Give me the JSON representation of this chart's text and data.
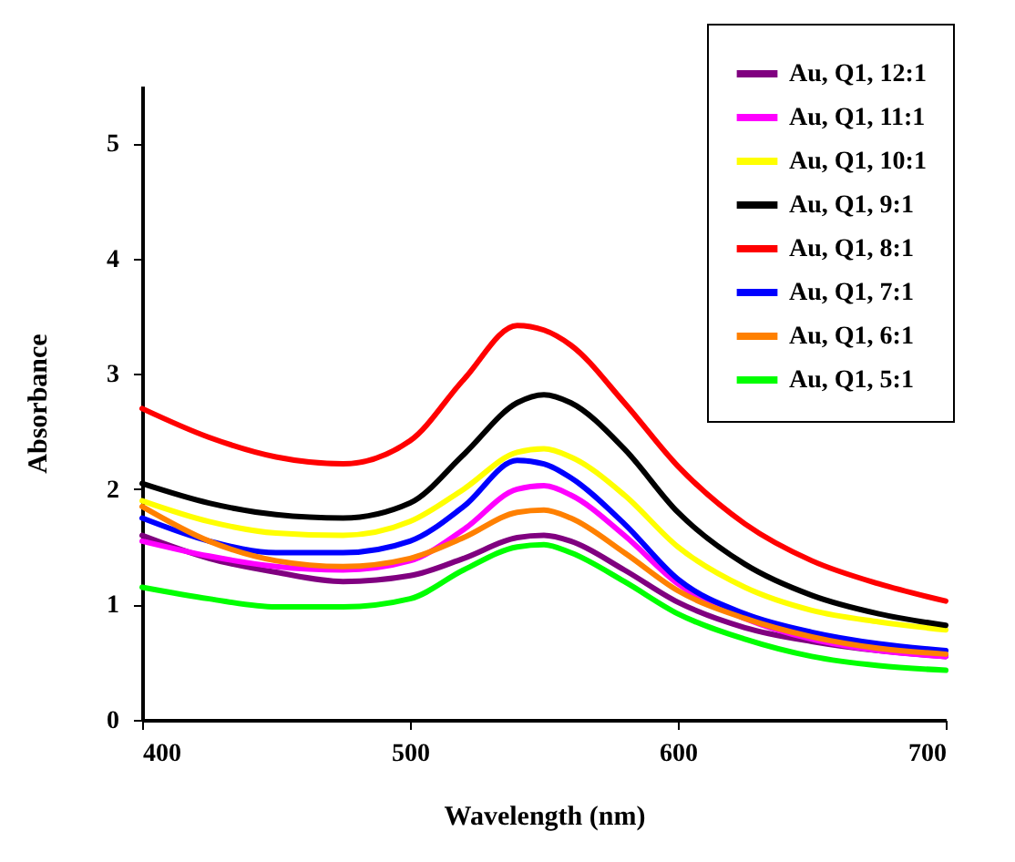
{
  "chart_data": {
    "type": "line",
    "xlabel": "Wavelength (nm)",
    "ylabel": "Absorbance",
    "x": [
      400,
      425,
      450,
      475,
      500,
      520,
      540,
      550,
      560,
      580,
      600,
      625,
      650,
      675,
      700
    ],
    "xlim": [
      400,
      700
    ],
    "xticks": [
      400,
      500,
      600,
      700
    ],
    "ylim": [
      0,
      5.5
    ],
    "yticks": [
      0,
      1,
      2,
      3,
      4,
      5
    ],
    "grid": false,
    "legend": "top right",
    "marker": "none",
    "line_style": "solid",
    "series": [
      {
        "name": "Au, Q1, 12:1",
        "color": "#800080",
        "values": [
          1.6,
          1.4,
          1.28,
          1.2,
          1.25,
          1.4,
          1.58,
          1.6,
          1.55,
          1.3,
          1.02,
          0.8,
          0.68,
          0.6,
          0.55
        ]
      },
      {
        "name": "Au, Q1, 11:1",
        "color": "#ff00ff",
        "values": [
          1.55,
          1.42,
          1.33,
          1.3,
          1.38,
          1.65,
          2.0,
          2.03,
          1.95,
          1.6,
          1.18,
          0.88,
          0.7,
          0.6,
          0.55
        ]
      },
      {
        "name": "Au, Q1, 10:1",
        "color": "#ffff00",
        "values": [
          1.9,
          1.72,
          1.62,
          1.6,
          1.72,
          2.0,
          2.32,
          2.35,
          2.28,
          1.95,
          1.5,
          1.15,
          0.95,
          0.85,
          0.78
        ]
      },
      {
        "name": "Au, Q1, 9:1",
        "color": "#000000",
        "values": [
          2.05,
          1.88,
          1.78,
          1.75,
          1.88,
          2.3,
          2.75,
          2.82,
          2.75,
          2.35,
          1.8,
          1.35,
          1.08,
          0.92,
          0.82
        ]
      },
      {
        "name": "Au, Q1, 8:1",
        "color": "#ff0000",
        "values": [
          2.7,
          2.45,
          2.28,
          2.22,
          2.42,
          2.95,
          3.42,
          3.38,
          3.25,
          2.75,
          2.2,
          1.7,
          1.38,
          1.18,
          1.03
        ]
      },
      {
        "name": "Au, Q1, 7:1",
        "color": "#0000ff",
        "values": [
          1.75,
          1.55,
          1.45,
          1.45,
          1.55,
          1.85,
          2.25,
          2.22,
          2.1,
          1.7,
          1.22,
          0.92,
          0.76,
          0.66,
          0.6
        ]
      },
      {
        "name": "Au, Q1, 6:1",
        "color": "#ff8000",
        "values": [
          1.85,
          1.55,
          1.38,
          1.33,
          1.4,
          1.58,
          1.8,
          1.82,
          1.75,
          1.45,
          1.12,
          0.88,
          0.72,
          0.62,
          0.57
        ]
      },
      {
        "name": "Au, Q1, 5:1",
        "color": "#00ff00",
        "values": [
          1.15,
          1.05,
          0.98,
          0.98,
          1.05,
          1.3,
          1.5,
          1.52,
          1.45,
          1.2,
          0.92,
          0.7,
          0.55,
          0.47,
          0.43
        ]
      }
    ]
  }
}
